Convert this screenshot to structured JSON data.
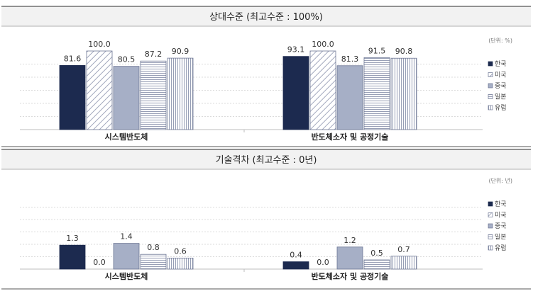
{
  "panels": [
    {
      "header": "상대수준 (최고수준 : 100%)",
      "unit": "(단위: %)"
    },
    {
      "header": "기술격차 (최고수준 : 0년)",
      "unit": "(단위: 년)"
    }
  ],
  "legend": [
    "한국",
    "미국",
    "중국",
    "일본",
    "유럽"
  ],
  "colors": {
    "korea": "#1c2a4f",
    "usa": "#ffffff",
    "china": "#a6afc6",
    "japan": "#ffffff",
    "europe": "#ffffff",
    "bar_border": "#6c7593",
    "header_bg": "#f2f2f2",
    "rule": "#555555",
    "grid": "#d0d0d0"
  },
  "chart_data": [
    {
      "type": "bar",
      "title": "상대수준 (최고수준 : 100%)",
      "categories": [
        "시스템반도체",
        "반도체소자 및 공정기술"
      ],
      "series": [
        {
          "name": "한국",
          "values": [
            81.6,
            93.1
          ]
        },
        {
          "name": "미국",
          "values": [
            100.0,
            100.0
          ]
        },
        {
          "name": "중국",
          "values": [
            80.5,
            81.3
          ]
        },
        {
          "name": "일본",
          "values": [
            87.2,
            91.5
          ]
        },
        {
          "name": "유럽",
          "values": [
            90.9,
            90.8
          ]
        }
      ],
      "ylim": [
        0,
        100
      ],
      "grid": true,
      "legend_position": "right",
      "unit": "%"
    },
    {
      "type": "bar",
      "title": "기술격차 (최고수준 : 0년)",
      "categories": [
        "시스템반도체",
        "반도체소자 및 공정기술"
      ],
      "series": [
        {
          "name": "한국",
          "values": [
            1.3,
            0.4
          ]
        },
        {
          "name": "미국",
          "values": [
            0.0,
            0.0
          ]
        },
        {
          "name": "중국",
          "values": [
            1.4,
            1.2
          ]
        },
        {
          "name": "일본",
          "values": [
            0.8,
            0.5
          ]
        },
        {
          "name": "유럽",
          "values": [
            0.6,
            0.7
          ]
        }
      ],
      "ylim": [
        0,
        4
      ],
      "grid": true,
      "legend_position": "right",
      "unit": "년"
    }
  ]
}
